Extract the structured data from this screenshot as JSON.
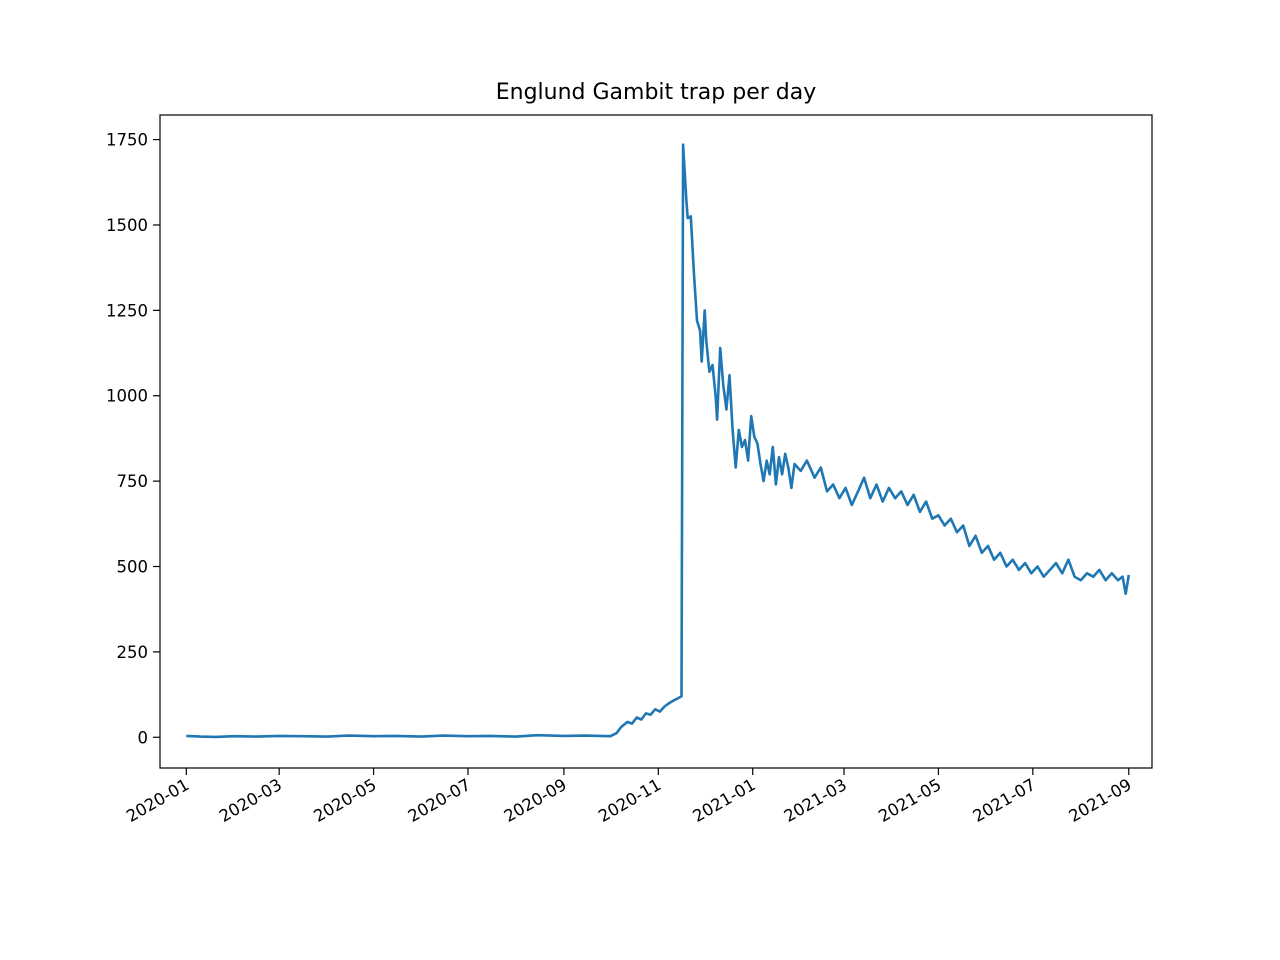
{
  "chart_data": {
    "type": "line",
    "title": "Englund Gambit trap per day",
    "xlabel": "",
    "ylabel": "",
    "x_range": [
      "2019-12-15",
      "2021-09-16"
    ],
    "y_range": [
      -90,
      1822
    ],
    "grid": false,
    "legend": "none",
    "x_ticks": [
      "2020-01",
      "2020-03",
      "2020-05",
      "2020-07",
      "2020-09",
      "2020-11",
      "2021-01",
      "2021-03",
      "2021-05",
      "2021-07",
      "2021-09"
    ],
    "y_ticks": [
      0,
      250,
      500,
      750,
      1000,
      1250,
      1500,
      1750
    ],
    "series": [
      {
        "color": "#1f77b4",
        "points": [
          [
            "2020-01-01",
            4
          ],
          [
            "2020-01-10",
            2
          ],
          [
            "2020-01-20",
            1
          ],
          [
            "2020-02-01",
            3
          ],
          [
            "2020-02-15",
            2
          ],
          [
            "2020-03-01",
            4
          ],
          [
            "2020-03-15",
            3
          ],
          [
            "2020-04-01",
            2
          ],
          [
            "2020-04-15",
            5
          ],
          [
            "2020-05-01",
            3
          ],
          [
            "2020-05-15",
            4
          ],
          [
            "2020-06-01",
            2
          ],
          [
            "2020-06-15",
            5
          ],
          [
            "2020-07-01",
            3
          ],
          [
            "2020-07-15",
            4
          ],
          [
            "2020-08-01",
            2
          ],
          [
            "2020-08-15",
            6
          ],
          [
            "2020-09-01",
            4
          ],
          [
            "2020-09-15",
            5
          ],
          [
            "2020-10-01",
            3
          ],
          [
            "2020-10-05",
            12
          ],
          [
            "2020-10-08",
            30
          ],
          [
            "2020-10-12",
            45
          ],
          [
            "2020-10-15",
            40
          ],
          [
            "2020-10-18",
            58
          ],
          [
            "2020-10-21",
            52
          ],
          [
            "2020-10-24",
            70
          ],
          [
            "2020-10-27",
            66
          ],
          [
            "2020-10-30",
            82
          ],
          [
            "2020-11-02",
            75
          ],
          [
            "2020-11-05",
            90
          ],
          [
            "2020-11-08",
            100
          ],
          [
            "2020-11-11",
            108
          ],
          [
            "2020-11-14",
            115
          ],
          [
            "2020-11-16",
            120
          ],
          [
            "2020-11-17",
            1735
          ],
          [
            "2020-11-19",
            1580
          ],
          [
            "2020-11-20",
            1520
          ],
          [
            "2020-11-22",
            1525
          ],
          [
            "2020-11-24",
            1360
          ],
          [
            "2020-11-26",
            1220
          ],
          [
            "2020-11-28",
            1190
          ],
          [
            "2020-11-29",
            1100
          ],
          [
            "2020-12-01",
            1250
          ],
          [
            "2020-12-02",
            1160
          ],
          [
            "2020-12-04",
            1070
          ],
          [
            "2020-12-06",
            1090
          ],
          [
            "2020-12-08",
            1000
          ],
          [
            "2020-12-09",
            930
          ],
          [
            "2020-12-11",
            1140
          ],
          [
            "2020-12-13",
            1030
          ],
          [
            "2020-12-15",
            960
          ],
          [
            "2020-12-17",
            1060
          ],
          [
            "2020-12-19",
            900
          ],
          [
            "2020-12-21",
            790
          ],
          [
            "2020-12-23",
            900
          ],
          [
            "2020-12-25",
            850
          ],
          [
            "2020-12-27",
            870
          ],
          [
            "2020-12-29",
            810
          ],
          [
            "2020-12-31",
            940
          ],
          [
            "2021-01-02",
            880
          ],
          [
            "2021-01-04",
            860
          ],
          [
            "2021-01-06",
            800
          ],
          [
            "2021-01-08",
            750
          ],
          [
            "2021-01-10",
            810
          ],
          [
            "2021-01-12",
            770
          ],
          [
            "2021-01-14",
            850
          ],
          [
            "2021-01-16",
            740
          ],
          [
            "2021-01-18",
            820
          ],
          [
            "2021-01-20",
            770
          ],
          [
            "2021-01-22",
            830
          ],
          [
            "2021-01-24",
            790
          ],
          [
            "2021-01-26",
            730
          ],
          [
            "2021-01-28",
            800
          ],
          [
            "2021-02-01",
            780
          ],
          [
            "2021-02-05",
            810
          ],
          [
            "2021-02-10",
            760
          ],
          [
            "2021-02-14",
            790
          ],
          [
            "2021-02-18",
            720
          ],
          [
            "2021-02-22",
            740
          ],
          [
            "2021-02-26",
            700
          ],
          [
            "2021-03-02",
            730
          ],
          [
            "2021-03-06",
            680
          ],
          [
            "2021-03-10",
            720
          ],
          [
            "2021-03-14",
            760
          ],
          [
            "2021-03-18",
            700
          ],
          [
            "2021-03-22",
            740
          ],
          [
            "2021-03-26",
            690
          ],
          [
            "2021-03-30",
            730
          ],
          [
            "2021-04-03",
            700
          ],
          [
            "2021-04-07",
            720
          ],
          [
            "2021-04-11",
            680
          ],
          [
            "2021-04-15",
            710
          ],
          [
            "2021-04-19",
            660
          ],
          [
            "2021-04-23",
            690
          ],
          [
            "2021-04-27",
            640
          ],
          [
            "2021-05-01",
            650
          ],
          [
            "2021-05-05",
            620
          ],
          [
            "2021-05-09",
            640
          ],
          [
            "2021-05-13",
            600
          ],
          [
            "2021-05-17",
            620
          ],
          [
            "2021-05-21",
            560
          ],
          [
            "2021-05-25",
            590
          ],
          [
            "2021-05-29",
            540
          ],
          [
            "2021-06-02",
            560
          ],
          [
            "2021-06-06",
            520
          ],
          [
            "2021-06-10",
            540
          ],
          [
            "2021-06-14",
            500
          ],
          [
            "2021-06-18",
            520
          ],
          [
            "2021-06-22",
            490
          ],
          [
            "2021-06-26",
            510
          ],
          [
            "2021-06-30",
            480
          ],
          [
            "2021-07-04",
            500
          ],
          [
            "2021-07-08",
            470
          ],
          [
            "2021-07-12",
            490
          ],
          [
            "2021-07-16",
            510
          ],
          [
            "2021-07-20",
            480
          ],
          [
            "2021-07-24",
            520
          ],
          [
            "2021-07-28",
            470
          ],
          [
            "2021-08-01",
            460
          ],
          [
            "2021-08-05",
            480
          ],
          [
            "2021-08-09",
            470
          ],
          [
            "2021-08-13",
            490
          ],
          [
            "2021-08-17",
            460
          ],
          [
            "2021-08-21",
            480
          ],
          [
            "2021-08-25",
            460
          ],
          [
            "2021-08-28",
            470
          ],
          [
            "2021-08-30",
            420
          ],
          [
            "2021-09-01",
            475
          ]
        ]
      }
    ]
  }
}
